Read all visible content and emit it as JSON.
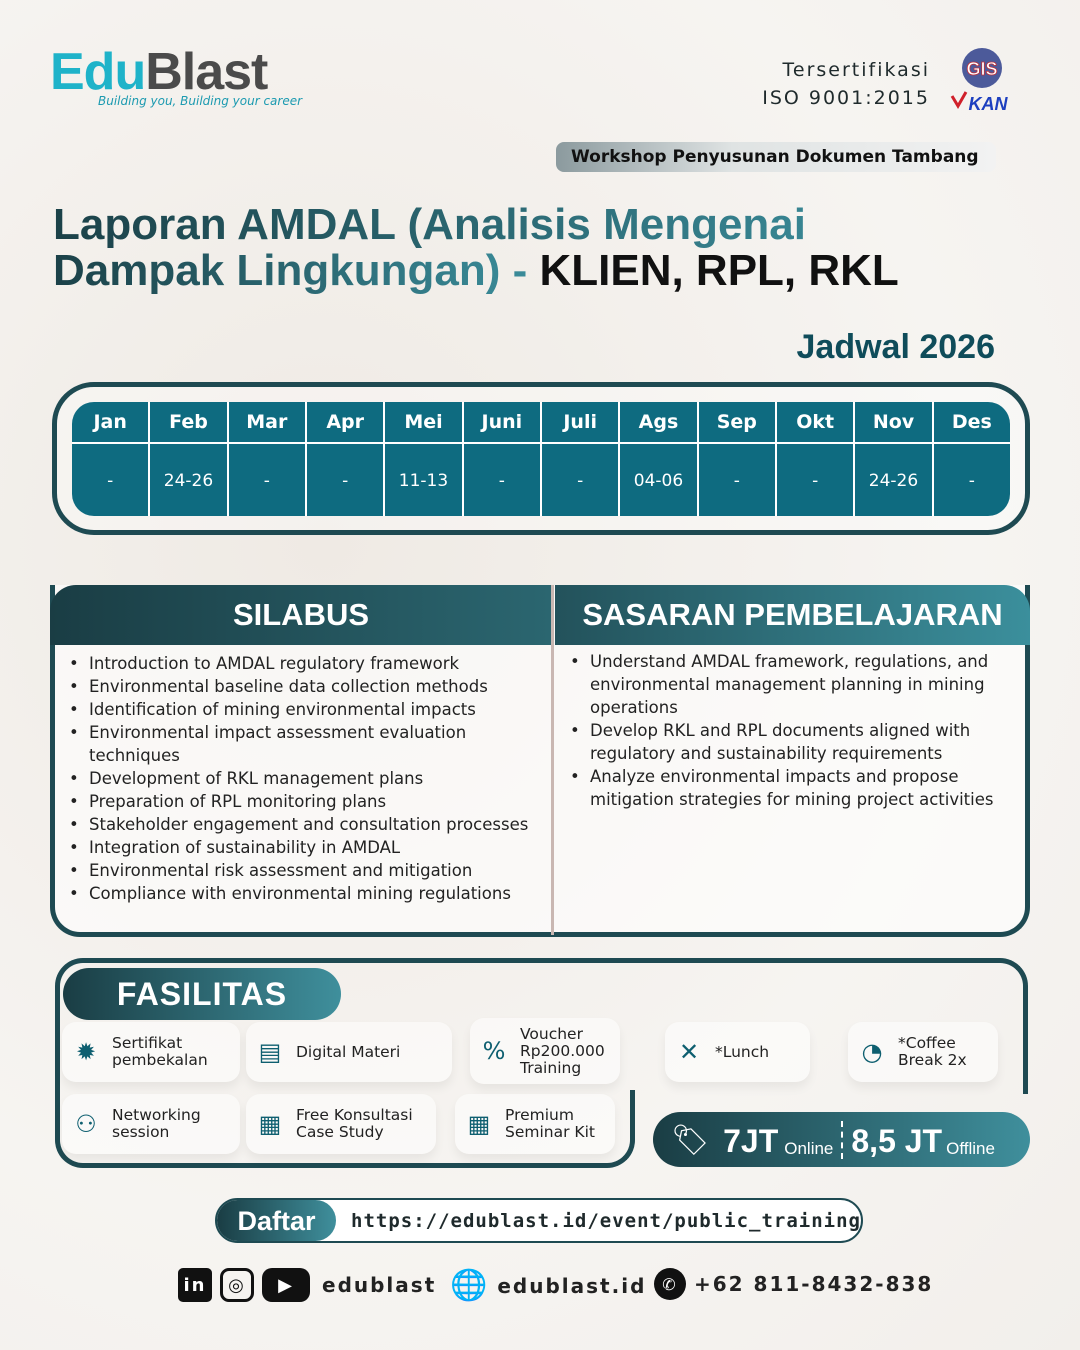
{
  "brand": {
    "name_part1": "Edu",
    "name_part2": "Blast",
    "tagline": "Building you, Building your career"
  },
  "certification": {
    "line1": "Tersertifikasi",
    "line2": "ISO 9001:2015",
    "badge_text": "GIS KAN"
  },
  "workshop_label": "Workshop Penyusunan Dokumen Tambang",
  "title": {
    "line1": "Laporan AMDAL (Analisis Mengenai",
    "line2a": "Dampak Lingkungan) - ",
    "line2b": "KLIEN, RPL, RKL"
  },
  "schedule": {
    "heading": "Jadwal 2026",
    "months": [
      "Jan",
      "Feb",
      "Mar",
      "Apr",
      "Mei",
      "Juni",
      "Juli",
      "Ags",
      "Sep",
      "Okt",
      "Nov",
      "Des"
    ],
    "dates": [
      "-",
      "24-26",
      "-",
      "-",
      "11-13",
      "-",
      "-",
      "04-06",
      "-",
      "-",
      "24-26",
      "-"
    ]
  },
  "silabus": {
    "heading": "SILABUS",
    "items": [
      "Introduction to AMDAL regulatory framework",
      "Environmental baseline data collection methods",
      "Identification of mining environmental impacts",
      "Environmental impact assessment evaluation techniques",
      "Development of RKL management plans",
      "Preparation of RPL monitoring plans",
      "Stakeholder engagement and consultation processes",
      "Integration of sustainability in AMDAL",
      "Environmental risk assessment and mitigation",
      "Compliance with environmental mining regulations"
    ]
  },
  "sasaran": {
    "heading": "SASARAN PEMBELAJARAN",
    "items": [
      "Understand AMDAL framework, regulations, and environmental management planning in mining operations",
      "Develop RKL and RPL documents aligned with regulatory and sustainability requirements",
      "Analyze environmental impacts and propose mitigation strategies for mining project activities"
    ]
  },
  "fasilitas": {
    "heading": "FASILITAS",
    "items": [
      {
        "label": "Sertifikat pembekalan",
        "icon": "certificate-icon"
      },
      {
        "label": "Digital Materi",
        "icon": "monitor-book-icon"
      },
      {
        "label": "Voucher Rp200.000 Training",
        "icon": "voucher-icon"
      },
      {
        "label": "*Lunch",
        "icon": "utensils-icon"
      },
      {
        "label": "*Coffee Break 2x",
        "icon": "coffee-clock-icon"
      },
      {
        "label": "Networking session",
        "icon": "network-icon"
      },
      {
        "label": "Free Konsultasi Case Study",
        "icon": "presentation-icon"
      },
      {
        "label": "Premium Seminar Kit",
        "icon": "seminar-icon"
      }
    ]
  },
  "price": {
    "online_value": "7JT",
    "online_label": "Online",
    "offline_value": "8,5 JT",
    "offline_label": "Offline"
  },
  "register": {
    "label": "Daftar",
    "url": "https://edublast.id/event/public_training"
  },
  "footer": {
    "social_handle": "edublast",
    "website": "edublast.id",
    "phone": "+62 811-8432-838"
  },
  "colors": {
    "primary": "#1e4a52",
    "table": "#0e6b80",
    "accent": "#3f8f9c"
  }
}
